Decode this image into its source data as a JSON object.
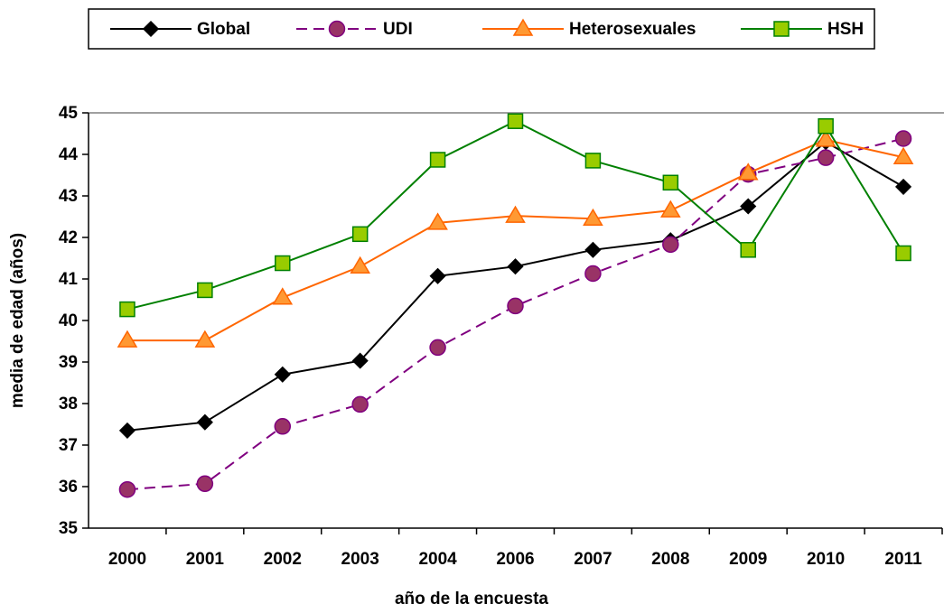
{
  "chart_data": {
    "type": "line",
    "x_label": "año de la encuesta",
    "y_label": "media de edad (años)",
    "categories": [
      "2000",
      "2001",
      "2002",
      "2003",
      "2004",
      "2006",
      "2007",
      "2008",
      "2009",
      "2010",
      "2011"
    ],
    "ylim": [
      35,
      45
    ],
    "yticks": [
      35,
      36,
      37,
      38,
      39,
      40,
      41,
      42,
      43,
      44,
      45
    ],
    "grid": false,
    "legend": "top",
    "series": [
      {
        "name": "Global",
        "color": "#000000",
        "marker": "diamond",
        "marker_fill": "#000000",
        "dash": false,
        "values": [
          37.35,
          37.55,
          38.7,
          39.03,
          41.07,
          41.3,
          41.7,
          41.93,
          42.75,
          44.3,
          43.22
        ]
      },
      {
        "name": "UDI",
        "color": "#800080",
        "marker": "circle",
        "marker_fill": "#993366",
        "dash": true,
        "values": [
          35.93,
          36.07,
          37.45,
          37.98,
          39.35,
          40.35,
          41.13,
          41.83,
          43.52,
          43.92,
          44.38
        ]
      },
      {
        "name": "Heterosexuales",
        "color": "#ff6600",
        "marker": "triangle",
        "marker_fill": "#ff9933",
        "dash": false,
        "values": [
          39.52,
          39.52,
          40.55,
          41.3,
          42.35,
          42.52,
          42.45,
          42.65,
          43.55,
          44.35,
          43.93
        ]
      },
      {
        "name": "HSH",
        "color": "#008000",
        "marker": "square",
        "marker_fill": "#99cc00",
        "dash": false,
        "values": [
          40.27,
          40.73,
          41.38,
          42.08,
          43.87,
          44.8,
          43.85,
          43.32,
          41.7,
          44.68,
          41.62
        ]
      }
    ]
  }
}
